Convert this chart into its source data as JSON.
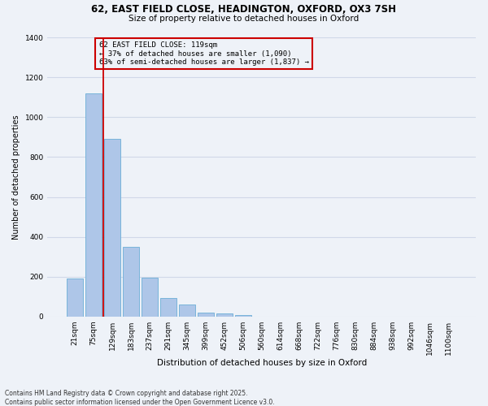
{
  "title1": "62, EAST FIELD CLOSE, HEADINGTON, OXFORD, OX3 7SH",
  "title2": "Size of property relative to detached houses in Oxford",
  "xlabel": "Distribution of detached houses by size in Oxford",
  "ylabel": "Number of detached properties",
  "categories": [
    "21sqm",
    "75sqm",
    "129sqm",
    "183sqm",
    "237sqm",
    "291sqm",
    "345sqm",
    "399sqm",
    "452sqm",
    "506sqm",
    "560sqm",
    "614sqm",
    "668sqm",
    "722sqm",
    "776sqm",
    "830sqm",
    "884sqm",
    "938sqm",
    "992sqm",
    "1046sqm",
    "1100sqm"
  ],
  "values": [
    190,
    1120,
    890,
    350,
    195,
    95,
    60,
    20,
    18,
    10,
    0,
    0,
    0,
    0,
    0,
    0,
    0,
    0,
    0,
    0,
    0
  ],
  "bar_color": "#aec6e8",
  "bar_edge_color": "#6baed6",
  "grid_color": "#d0d8e8",
  "bg_color": "#eef2f8",
  "vline_color": "#cc0000",
  "annotation_text": "62 EAST FIELD CLOSE: 119sqm\n← 37% of detached houses are smaller (1,090)\n63% of semi-detached houses are larger (1,837) →",
  "annotation_box_edgecolor": "#cc0000",
  "footer1": "Contains HM Land Registry data © Crown copyright and database right 2025.",
  "footer2": "Contains public sector information licensed under the Open Government Licence v3.0.",
  "ylim": [
    0,
    1400
  ],
  "yticks": [
    0,
    200,
    400,
    600,
    800,
    1000,
    1200,
    1400
  ],
  "title1_fontsize": 8.5,
  "title2_fontsize": 7.5,
  "xlabel_fontsize": 7.5,
  "ylabel_fontsize": 7,
  "tick_fontsize": 6.5,
  "ann_fontsize": 6.5,
  "footer_fontsize": 5.5
}
